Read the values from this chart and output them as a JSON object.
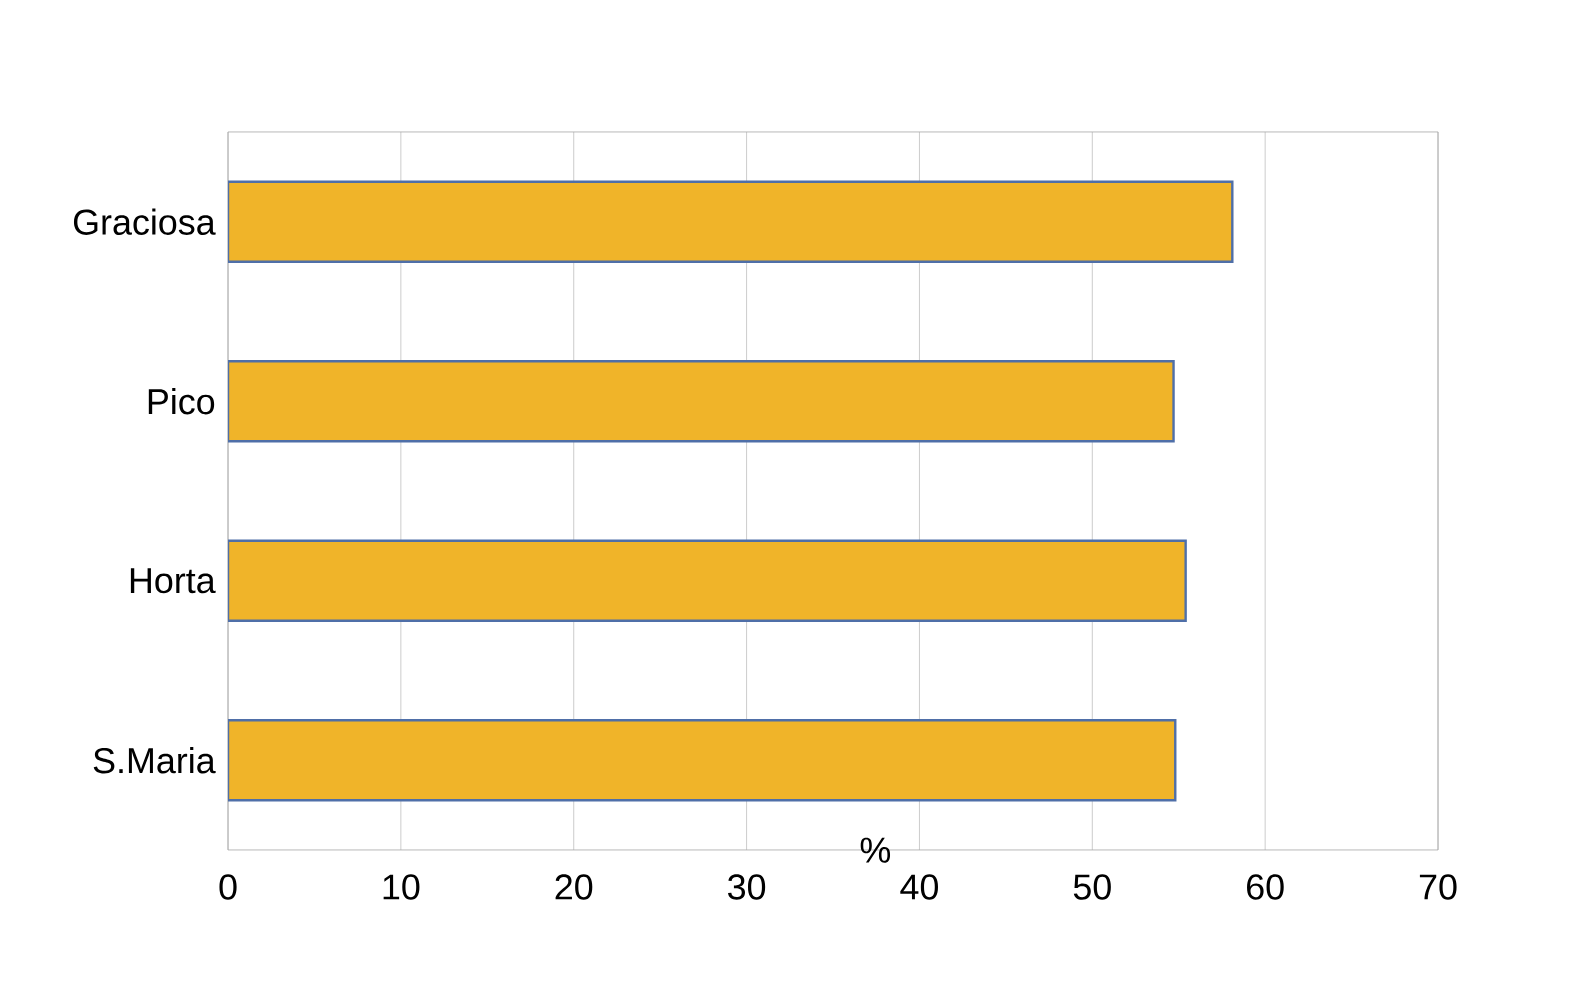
{
  "chart_data": {
    "type": "bar",
    "orientation": "horizontal",
    "xlabel": "%",
    "categories": [
      "Graciosa",
      "Pico",
      "Horta",
      "S.Maria"
    ],
    "values": [
      58.1,
      54.7,
      55.4,
      54.8
    ],
    "color": "#f0b429",
    "xlim": [
      0,
      70
    ],
    "xticks": [
      0,
      10,
      20,
      30,
      40,
      50,
      60,
      70
    ],
    "grid": "x"
  }
}
